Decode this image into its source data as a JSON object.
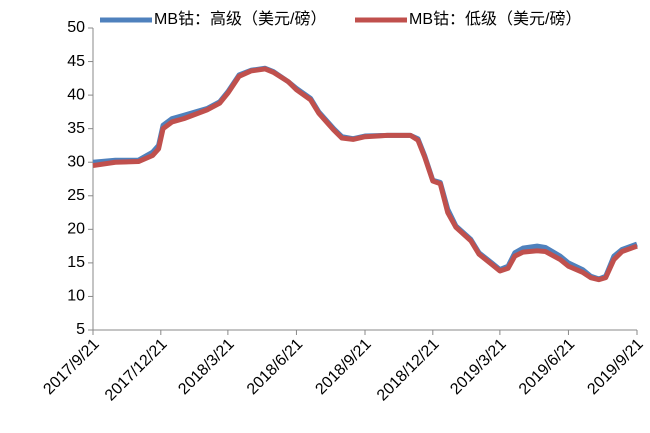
{
  "chart_data": {
    "type": "line",
    "x": [
      "2017/9/21",
      "2017/10/21",
      "2017/11/21",
      "2017/12/10",
      "2017/12/18",
      "2017/12/24",
      "2018/1/5",
      "2018/1/21",
      "2018/2/21",
      "2018/3/10",
      "2018/3/21",
      "2018/4/5",
      "2018/4/21",
      "2018/5/10",
      "2018/5/21",
      "2018/6/10",
      "2018/6/21",
      "2018/7/10",
      "2018/7/21",
      "2018/8/10",
      "2018/8/21",
      "2018/9/5",
      "2018/9/21",
      "2018/10/21",
      "2018/11/21",
      "2018/12/1",
      "2018/12/10",
      "2018/12/21",
      "2018/12/31",
      "2019/1/10",
      "2019/1/21",
      "2019/2/10",
      "2019/2/21",
      "2019/3/10",
      "2019/3/21",
      "2019/4/1",
      "2019/4/10",
      "2019/4/21",
      "2019/5/10",
      "2019/5/21",
      "2019/6/10",
      "2019/6/21",
      "2019/7/10",
      "2019/7/21",
      "2019/8/1",
      "2019/8/10",
      "2019/8/21",
      "2019/9/1",
      "2019/9/21"
    ],
    "series": [
      {
        "name": "MB钴：高级（美元/磅）",
        "color": "#4f81bd",
        "values": [
          30,
          30.3,
          30.3,
          31.5,
          32.5,
          35.5,
          36.5,
          37,
          38,
          39,
          40.5,
          43,
          43.7,
          44,
          43.5,
          42,
          41,
          39.5,
          37.5,
          35,
          33.8,
          33.5,
          33.9,
          34,
          34,
          33.5,
          31,
          27.3,
          27,
          23,
          20.5,
          18.5,
          16.5,
          15,
          14,
          14.5,
          16.5,
          17.2,
          17.5,
          17.3,
          16,
          15,
          14,
          13,
          12.6,
          13,
          16,
          17,
          17.8
        ]
      },
      {
        "name": "MB钴：低级（美元/磅）",
        "color": "#c0504d",
        "values": [
          29.5,
          30,
          30.1,
          31,
          32,
          35,
          36,
          36.5,
          37.8,
          38.8,
          40.3,
          42.8,
          43.6,
          43.9,
          43.4,
          42,
          40.8,
          39.3,
          37.3,
          34.8,
          33.6,
          33.4,
          33.8,
          34,
          34,
          33.3,
          30.8,
          27.2,
          26.8,
          22.5,
          20.3,
          18.3,
          16.3,
          14.8,
          13.8,
          14.2,
          16,
          16.6,
          16.8,
          16.7,
          15.5,
          14.5,
          13.6,
          12.8,
          12.5,
          12.8,
          15.5,
          16.7,
          17.5
        ]
      }
    ],
    "xlim": [
      "2017/9/21",
      "2019/9/21"
    ],
    "xticks": [
      "2017/9/21",
      "2017/12/21",
      "2018/3/21",
      "2018/6/21",
      "2018/9/21",
      "2018/12/21",
      "2019/3/21",
      "2019/6/21",
      "2019/9/21"
    ],
    "ylim": [
      5,
      50
    ],
    "yticks": [
      5,
      10,
      15,
      20,
      25,
      30,
      35,
      40,
      45,
      50
    ]
  }
}
